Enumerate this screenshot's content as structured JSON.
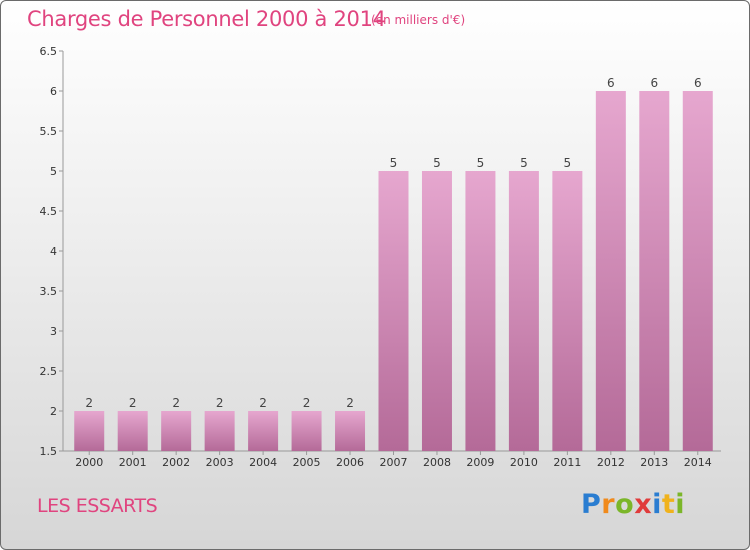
{
  "chart_data": {
    "type": "bar",
    "title": "Charges de Personnel 2000 à 2014",
    "subtitle": "(en milliers d'€)",
    "xlabel": "",
    "ylabel": "",
    "categories": [
      "2000",
      "2001",
      "2002",
      "2003",
      "2004",
      "2005",
      "2006",
      "2007",
      "2008",
      "2009",
      "2010",
      "2011",
      "2012",
      "2013",
      "2014"
    ],
    "values": [
      2,
      2,
      2,
      2,
      2,
      2,
      2,
      5,
      5,
      5,
      5,
      5,
      6,
      6,
      6
    ],
    "ylim": [
      1.5,
      6.5
    ],
    "yticks": [
      1.5,
      2,
      2.5,
      3,
      3.5,
      4,
      4.5,
      5,
      5.5,
      6,
      6.5
    ],
    "grid": false,
    "bar_color": "#d98cb8"
  },
  "footer": {
    "commune": "LES ESSARTS",
    "logo": "Proxiti"
  }
}
